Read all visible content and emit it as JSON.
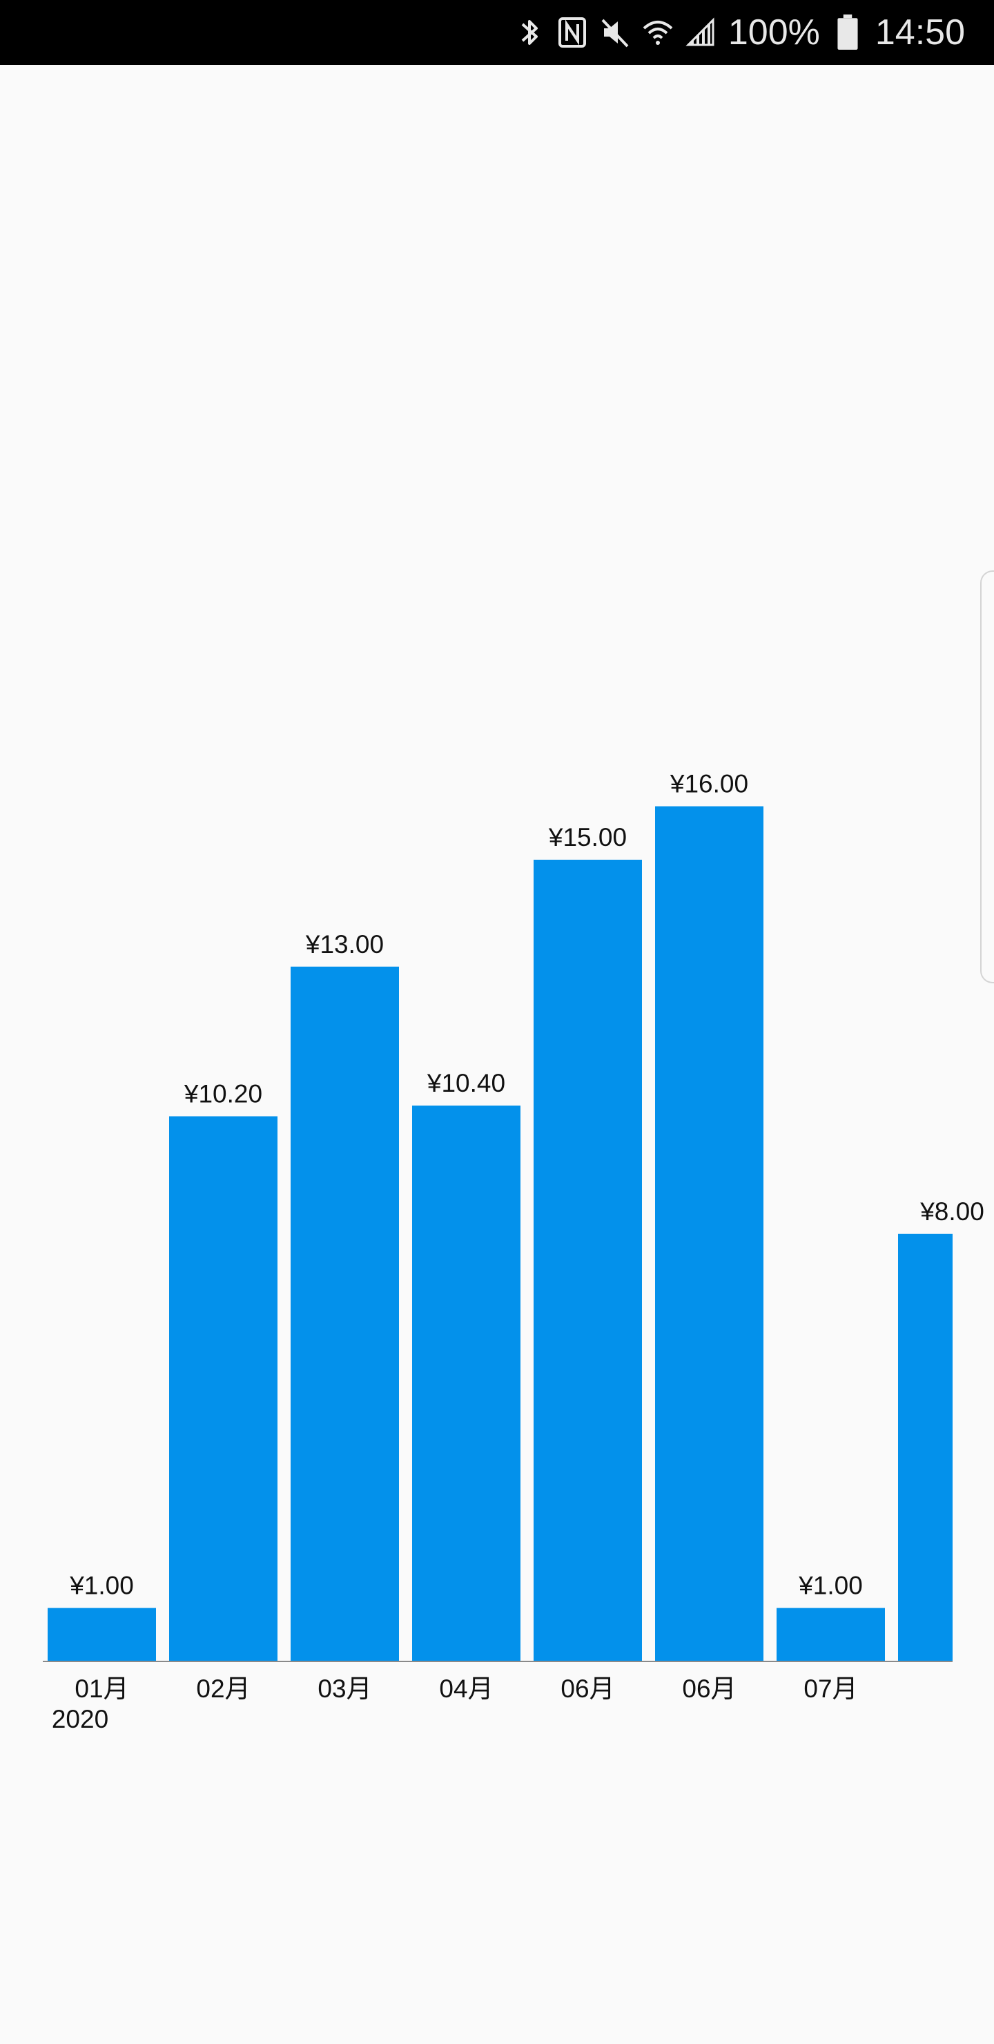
{
  "status_bar": {
    "battery": "100%",
    "time": "14:50",
    "icons": [
      "bluetooth-icon",
      "nfc-icon",
      "mute-icon",
      "wifi-icon",
      "signal-icon",
      "battery-icon"
    ]
  },
  "chart_data": {
    "type": "bar",
    "categories": [
      "01月",
      "02月",
      "03月",
      "04月",
      "06月",
      "06月",
      "07月",
      ""
    ],
    "values": [
      1.0,
      10.2,
      13.0,
      10.4,
      15.0,
      16.0,
      1.0,
      8.0
    ],
    "data_labels": [
      "¥1.00",
      "¥10.20",
      "¥13.00",
      "¥10.40",
      "¥15.00",
      "¥16.00",
      "¥1.00",
      "¥8.00"
    ],
    "year_label": "2020",
    "title": "",
    "xlabel": "",
    "ylabel": "",
    "ylim": [
      0,
      16
    ],
    "grid": false,
    "bar_color": "#0391eb"
  }
}
